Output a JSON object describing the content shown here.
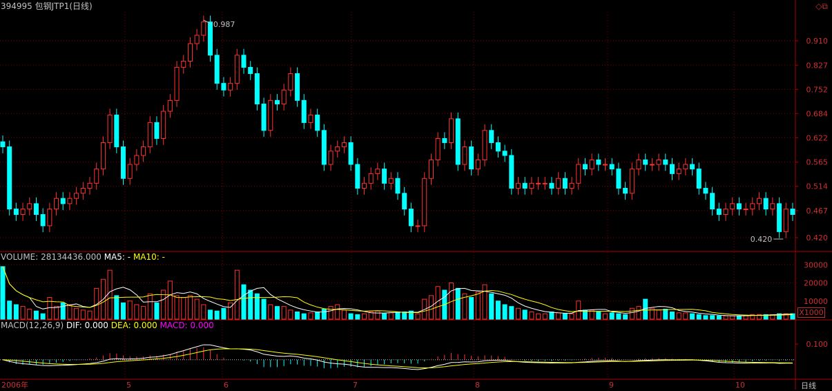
{
  "title": "394995 包钢JTP1(日线)",
  "corner_icons": [
    "diamond-icon",
    "restore-window-icon"
  ],
  "price_panel": {
    "y_ticks": [
      "0.910",
      "0.827",
      "0.752",
      "0.684",
      "0.622",
      "0.565",
      "0.514",
      "0.467",
      "0.420"
    ],
    "max_label": "0.987",
    "min_label": "0.420"
  },
  "volume_panel": {
    "label_volume": "VOLUME: 28134436.000",
    "label_ma5": "MA5: -",
    "label_ma10": "MA10: -",
    "y_ticks": [
      "30000",
      "20000",
      "10000"
    ],
    "unit": "X1000"
  },
  "macd_panel": {
    "label": "MACD(12,26,9)",
    "label_dif": "DIF: 0.000",
    "label_dea": "DEA: 0.000",
    "label_macd": "MACD: 0.000",
    "y_ticks": [
      "0.100"
    ]
  },
  "x_ticks": [
    "2006年",
    "5",
    "6",
    "7",
    "8",
    "9",
    "10"
  ],
  "period_label": "日线",
  "colors": {
    "up": "#ff3232",
    "down": "#00ffff",
    "ma5": "#ffffff",
    "ma10": "#ffff00",
    "macd_label": "#ff00ff",
    "axis": "#b00000"
  },
  "chart_data": {
    "type": "candlestick",
    "y_scale": "log",
    "ylim": [
      0.4,
      1.02
    ],
    "price_max": 0.987,
    "price_min": 0.42,
    "closes": [
      0.6,
      0.47,
      0.46,
      0.47,
      0.48,
      0.46,
      0.44,
      0.47,
      0.49,
      0.48,
      0.49,
      0.5,
      0.51,
      0.52,
      0.55,
      0.61,
      0.68,
      0.6,
      0.53,
      0.56,
      0.58,
      0.6,
      0.66,
      0.62,
      0.69,
      0.72,
      0.82,
      0.84,
      0.9,
      0.93,
      0.98,
      0.86,
      0.77,
      0.75,
      0.77,
      0.86,
      0.82,
      0.8,
      0.71,
      0.64,
      0.72,
      0.71,
      0.75,
      0.8,
      0.72,
      0.66,
      0.68,
      0.64,
      0.56,
      0.59,
      0.6,
      0.61,
      0.56,
      0.51,
      0.52,
      0.54,
      0.55,
      0.52,
      0.53,
      0.5,
      0.47,
      0.44,
      0.44,
      0.53,
      0.57,
      0.62,
      0.61,
      0.67,
      0.56,
      0.6,
      0.55,
      0.57,
      0.64,
      0.61,
      0.59,
      0.58,
      0.51,
      0.52,
      0.51,
      0.52,
      0.52,
      0.52,
      0.51,
      0.53,
      0.51,
      0.52,
      0.56,
      0.55,
      0.57,
      0.56,
      0.56,
      0.55,
      0.51,
      0.5,
      0.55,
      0.57,
      0.56,
      0.56,
      0.57,
      0.56,
      0.54,
      0.55,
      0.56,
      0.55,
      0.51,
      0.5,
      0.47,
      0.46,
      0.47,
      0.48,
      0.47,
      0.47,
      0.48,
      0.49,
      0.47,
      0.48,
      0.43,
      0.47,
      0.46
    ],
    "volumes": [
      29000,
      10000,
      8000,
      7000,
      5500,
      4500,
      3000,
      12000,
      7000,
      9000,
      8000,
      6000,
      5000,
      4500,
      17000,
      22000,
      27000,
      13000,
      9000,
      10000,
      8000,
      7000,
      14000,
      9000,
      16000,
      21000,
      13000,
      12000,
      13000,
      11000,
      8000,
      5000,
      4500,
      6000,
      9000,
      27000,
      19000,
      16000,
      14000,
      11000,
      8000,
      7000,
      7000,
      5000,
      4000,
      3000,
      3500,
      4000,
      5500,
      7000,
      8000,
      5000,
      3000,
      2500,
      3000,
      4000,
      4500,
      3000,
      3500,
      4000,
      4000,
      4500,
      3000,
      11000,
      13000,
      18000,
      16000,
      20000,
      17000,
      14000,
      12000,
      15000,
      19000,
      14000,
      10000,
      8000,
      7000,
      6000,
      5000,
      4000,
      3000,
      3000,
      4000,
      3500,
      3000,
      3000,
      10000,
      5000,
      5000,
      4000,
      3000,
      3500,
      3000,
      2500,
      6000,
      7000,
      11000,
      6000,
      5000,
      5500,
      4000,
      3500,
      3500,
      3000,
      2500,
      2000,
      2000,
      1800,
      1800,
      1800,
      1800,
      2000,
      2500,
      2500,
      2500,
      2500,
      3000,
      3000,
      3000
    ],
    "macd_ylim": [
      -0.12,
      0.18
    ]
  }
}
